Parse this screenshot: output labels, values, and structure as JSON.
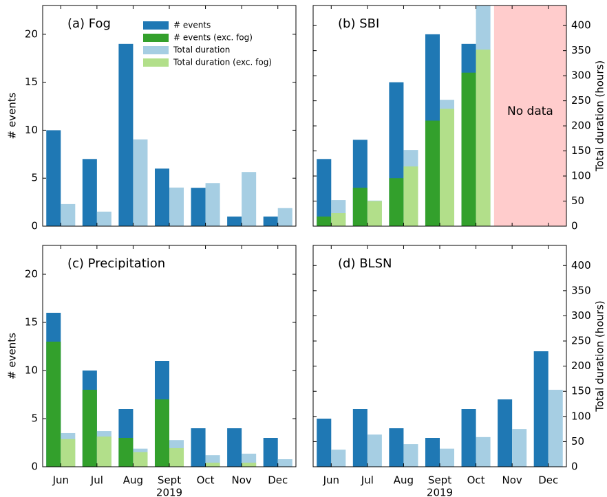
{
  "chart_data": [
    {
      "type": "bar",
      "title": "(a) Fog",
      "ylabel": "# events",
      "legend": "upper center",
      "categories": [
        null,
        null,
        null,
        null,
        null,
        null,
        null
      ],
      "series": [
        {
          "name": "# events",
          "color": "#1f78b4",
          "values": [
            10,
            7,
            19,
            6,
            4,
            1,
            1
          ]
        },
        {
          "name": "# events (exc. fog)",
          "color": "#33a02c",
          "values": [
            null,
            null,
            null,
            null,
            null,
            null,
            null
          ]
        },
        {
          "name": "Total duration",
          "color": "#a6cee3",
          "axis": "y2",
          "values": [
            44,
            29,
            173,
            77,
            86,
            108,
            36
          ]
        },
        {
          "name": "Total duration (exc. fog)",
          "color": "#b2df8a",
          "axis": "y2",
          "values": [
            null,
            null,
            null,
            null,
            null,
            null,
            null
          ]
        }
      ],
      "ylim": [
        0,
        23
      ],
      "yticks": [
        0,
        5,
        10,
        15,
        20
      ],
      "y2lim": [
        0,
        440
      ]
    },
    {
      "type": "bar",
      "title": "(b) SBI",
      "y2label": "Total duration (hours)",
      "annotation": "No data",
      "categories": [
        null,
        null,
        null,
        null,
        null,
        null,
        null
      ],
      "series": [
        {
          "color": "#1f78b4",
          "values": [
            7,
            9,
            15,
            20,
            19,
            null,
            null
          ]
        },
        {
          "color": "#33a02c",
          "values": [
            1,
            4,
            5,
            11,
            16,
            null,
            null
          ]
        },
        {
          "color": "#a6cee3",
          "axis": "y2",
          "values": [
            52,
            51,
            152,
            252,
            440,
            null,
            null
          ]
        },
        {
          "color": "#b2df8a",
          "axis": "y2",
          "values": [
            26,
            50,
            119,
            234,
            352,
            null,
            null
          ]
        }
      ],
      "ylim": [
        0,
        23
      ],
      "y2lim": [
        0,
        440
      ],
      "y2ticks": [
        0,
        50,
        100,
        150,
        200,
        250,
        300,
        350,
        400
      ]
    },
    {
      "type": "bar",
      "title": "(c) Precipitation",
      "ylabel": "# events",
      "xlabel": "2019",
      "categories": [
        "Jun",
        "Jul",
        "Aug",
        "Sept",
        "Oct",
        "Nov",
        "Dec"
      ],
      "series": [
        {
          "color": "#1f78b4",
          "values": [
            16,
            10,
            6,
            11,
            4,
            4,
            3
          ]
        },
        {
          "color": "#33a02c",
          "values": [
            13,
            8,
            3,
            7,
            0,
            0,
            0
          ]
        },
        {
          "color": "#a6cee3",
          "axis": "y2",
          "values": [
            67,
            71,
            36,
            53,
            23,
            26,
            15
          ]
        },
        {
          "color": "#b2df8a",
          "axis": "y2",
          "values": [
            55,
            60,
            29,
            37,
            8,
            8,
            0
          ]
        }
      ],
      "ylim": [
        0,
        23
      ],
      "yticks": [
        0,
        5,
        10,
        15,
        20
      ],
      "y2lim": [
        0,
        440
      ]
    },
    {
      "type": "bar",
      "title": "(d) BLSN",
      "y2label": "Total duration (hours)",
      "xlabel": "2019",
      "categories": [
        "Jun",
        "Jul",
        "Aug",
        "Sept",
        "Oct",
        "Nov",
        "Dec"
      ],
      "series": [
        {
          "color": "#1f78b4",
          "values": [
            5,
            6,
            4,
            3,
            6,
            7,
            12
          ]
        },
        {
          "color": "#a6cee3",
          "axis": "y2",
          "values": [
            34,
            64,
            45,
            36,
            59,
            75,
            153
          ]
        }
      ],
      "ylim": [
        0,
        23
      ],
      "y2lim": [
        0,
        440
      ],
      "y2ticks": [
        0,
        50,
        100,
        150,
        200,
        250,
        300,
        350,
        400
      ]
    }
  ]
}
